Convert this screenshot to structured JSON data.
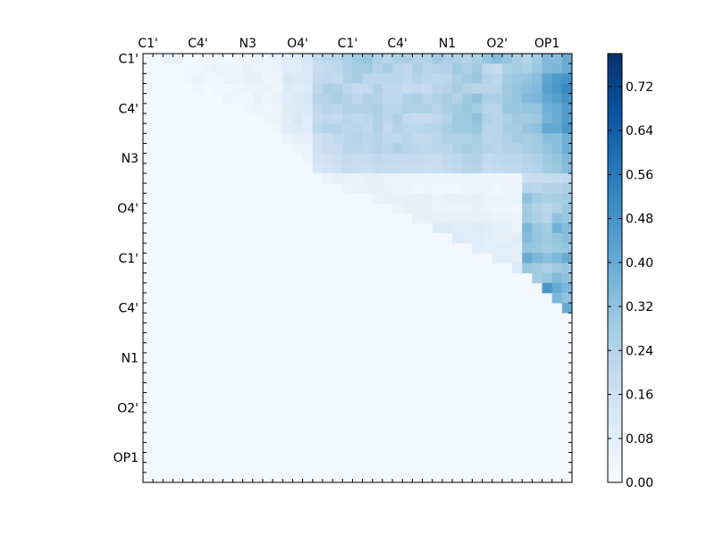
{
  "chart_data": {
    "type": "heatmap",
    "colormap": "Blues",
    "grid": false,
    "x_tick_labels": [
      "C1'",
      "C4'",
      "N3",
      "O4'",
      "C1'",
      "C4'",
      "N1",
      "O2'",
      "OP1"
    ],
    "y_tick_labels": [
      "C1'",
      "C4'",
      "N3",
      "O4'",
      "C1'",
      "C4'",
      "N1",
      "O2'",
      "OP1"
    ],
    "colorbar": {
      "range": [
        0.0,
        0.78
      ],
      "ticks": [
        "0.00",
        "0.08",
        "0.16",
        "0.24",
        "0.32",
        "0.40",
        "0.48",
        "0.56",
        "0.64",
        "0.72"
      ],
      "position": "right"
    },
    "n_cells": 43,
    "values": [
      [
        0.02,
        0.02,
        0.06,
        0.06,
        0.02,
        0.02,
        0.03,
        0.03,
        0.02,
        0.03,
        0.03,
        0.05,
        0.05,
        0.06,
        0.09,
        0.09,
        0.12,
        0.2,
        0.22,
        0.23,
        0.26,
        0.29,
        0.31,
        0.26,
        0.23,
        0.26,
        0.26,
        0.24,
        0.24,
        0.29,
        0.26,
        0.25,
        0.24,
        0.26,
        0.31,
        0.34,
        0.31,
        0.26,
        0.24,
        0.28,
        0.35,
        0.34,
        0.4
      ],
      [
        0.02,
        0.02,
        0.02,
        0.02,
        0.03,
        0.03,
        0.04,
        0.05,
        0.04,
        0.05,
        0.07,
        0.05,
        0.04,
        0.06,
        0.09,
        0.09,
        0.11,
        0.19,
        0.2,
        0.21,
        0.26,
        0.28,
        0.28,
        0.24,
        0.27,
        0.22,
        0.21,
        0.26,
        0.22,
        0.24,
        0.24,
        0.29,
        0.26,
        0.29,
        0.22,
        0.19,
        0.26,
        0.28,
        0.26,
        0.3,
        0.35,
        0.36,
        0.4
      ],
      [
        0.02,
        0.02,
        0.02,
        0.02,
        0.03,
        0.05,
        0.03,
        0.03,
        0.05,
        0.05,
        0.06,
        0.07,
        0.04,
        0.05,
        0.12,
        0.1,
        0.11,
        0.2,
        0.21,
        0.2,
        0.25,
        0.27,
        0.22,
        0.21,
        0.22,
        0.22,
        0.21,
        0.24,
        0.22,
        0.21,
        0.22,
        0.26,
        0.28,
        0.3,
        0.24,
        0.22,
        0.28,
        0.3,
        0.31,
        0.33,
        0.42,
        0.46,
        0.48
      ],
      [
        0.02,
        0.02,
        0.02,
        0.02,
        0.02,
        0.04,
        0.02,
        0.03,
        0.02,
        0.04,
        0.05,
        0.05,
        0.05,
        0.04,
        0.1,
        0.09,
        0.1,
        0.21,
        0.26,
        0.25,
        0.21,
        0.19,
        0.2,
        0.25,
        0.21,
        0.21,
        0.19,
        0.2,
        0.19,
        0.23,
        0.24,
        0.27,
        0.24,
        0.22,
        0.23,
        0.23,
        0.29,
        0.31,
        0.33,
        0.35,
        0.44,
        0.47,
        0.51
      ],
      [
        0.02,
        0.02,
        0.02,
        0.02,
        0.02,
        0.02,
        0.02,
        0.02,
        0.04,
        0.03,
        0.03,
        0.06,
        0.04,
        0.06,
        0.09,
        0.11,
        0.12,
        0.24,
        0.24,
        0.26,
        0.24,
        0.21,
        0.25,
        0.24,
        0.21,
        0.21,
        0.25,
        0.26,
        0.23,
        0.25,
        0.27,
        0.24,
        0.29,
        0.32,
        0.26,
        0.26,
        0.29,
        0.31,
        0.35,
        0.36,
        0.41,
        0.44,
        0.48
      ],
      [
        0.02,
        0.02,
        0.02,
        0.02,
        0.02,
        0.02,
        0.02,
        0.02,
        0.02,
        0.02,
        0.03,
        0.04,
        0.03,
        0.05,
        0.1,
        0.1,
        0.11,
        0.21,
        0.23,
        0.22,
        0.25,
        0.24,
        0.24,
        0.26,
        0.23,
        0.23,
        0.25,
        0.25,
        0.26,
        0.23,
        0.26,
        0.28,
        0.3,
        0.28,
        0.23,
        0.23,
        0.3,
        0.3,
        0.31,
        0.31,
        0.38,
        0.4,
        0.45
      ],
      [
        0.02,
        0.02,
        0.02,
        0.02,
        0.02,
        0.02,
        0.02,
        0.02,
        0.02,
        0.02,
        0.02,
        0.02,
        0.04,
        0.05,
        0.08,
        0.11,
        0.09,
        0.2,
        0.21,
        0.2,
        0.23,
        0.21,
        0.22,
        0.25,
        0.22,
        0.25,
        0.2,
        0.19,
        0.19,
        0.21,
        0.24,
        0.29,
        0.29,
        0.32,
        0.25,
        0.23,
        0.26,
        0.29,
        0.28,
        0.29,
        0.37,
        0.4,
        0.45
      ],
      [
        0.02,
        0.02,
        0.02,
        0.02,
        0.02,
        0.02,
        0.02,
        0.02,
        0.02,
        0.02,
        0.02,
        0.02,
        0.02,
        0.04,
        0.09,
        0.1,
        0.09,
        0.22,
        0.24,
        0.24,
        0.22,
        0.23,
        0.21,
        0.25,
        0.2,
        0.24,
        0.22,
        0.22,
        0.23,
        0.23,
        0.26,
        0.29,
        0.29,
        0.3,
        0.23,
        0.23,
        0.27,
        0.28,
        0.31,
        0.32,
        0.41,
        0.41,
        0.47
      ],
      [
        0.02,
        0.02,
        0.02,
        0.02,
        0.02,
        0.02,
        0.02,
        0.02,
        0.02,
        0.02,
        0.02,
        0.02,
        0.02,
        0.02,
        0.05,
        0.08,
        0.07,
        0.16,
        0.18,
        0.21,
        0.22,
        0.24,
        0.22,
        0.24,
        0.21,
        0.21,
        0.23,
        0.2,
        0.2,
        0.22,
        0.25,
        0.25,
        0.25,
        0.27,
        0.22,
        0.23,
        0.25,
        0.28,
        0.27,
        0.29,
        0.33,
        0.33,
        0.38
      ],
      [
        0.02,
        0.02,
        0.02,
        0.02,
        0.02,
        0.02,
        0.02,
        0.02,
        0.02,
        0.02,
        0.02,
        0.02,
        0.02,
        0.02,
        0.02,
        0.04,
        0.05,
        0.16,
        0.18,
        0.19,
        0.22,
        0.22,
        0.21,
        0.24,
        0.22,
        0.25,
        0.23,
        0.22,
        0.21,
        0.22,
        0.22,
        0.25,
        0.27,
        0.26,
        0.24,
        0.23,
        0.24,
        0.24,
        0.27,
        0.28,
        0.31,
        0.33,
        0.39
      ],
      [
        0.02,
        0.02,
        0.02,
        0.02,
        0.02,
        0.02,
        0.02,
        0.02,
        0.02,
        0.02,
        0.02,
        0.02,
        0.02,
        0.02,
        0.02,
        0.02,
        0.04,
        0.14,
        0.15,
        0.17,
        0.2,
        0.19,
        0.19,
        0.21,
        0.2,
        0.2,
        0.2,
        0.2,
        0.19,
        0.19,
        0.21,
        0.22,
        0.24,
        0.25,
        0.2,
        0.21,
        0.22,
        0.22,
        0.24,
        0.25,
        0.29,
        0.31,
        0.35
      ],
      [
        0.02,
        0.02,
        0.02,
        0.02,
        0.02,
        0.02,
        0.02,
        0.02,
        0.02,
        0.02,
        0.02,
        0.02,
        0.02,
        0.02,
        0.02,
        0.02,
        0.02,
        0.12,
        0.14,
        0.16,
        0.19,
        0.18,
        0.17,
        0.2,
        0.19,
        0.19,
        0.18,
        0.18,
        0.17,
        0.18,
        0.2,
        0.21,
        0.23,
        0.24,
        0.19,
        0.2,
        0.21,
        0.21,
        0.23,
        0.24,
        0.28,
        0.3,
        0.34
      ],
      [
        0.02,
        0.02,
        0.02,
        0.02,
        0.02,
        0.02,
        0.02,
        0.02,
        0.02,
        0.02,
        0.02,
        0.02,
        0.02,
        0.02,
        0.02,
        0.02,
        0.02,
        0.02,
        0.05,
        0.07,
        0.06,
        0.05,
        0.06,
        0.07,
        0.05,
        0.05,
        0.05,
        0.05,
        0.04,
        0.04,
        0.04,
        0.04,
        0.04,
        0.05,
        0.04,
        0.04,
        0.04,
        0.04,
        0.18,
        0.19,
        0.19,
        0.2,
        0.21
      ],
      [
        0.02,
        0.02,
        0.02,
        0.02,
        0.02,
        0.02,
        0.02,
        0.02,
        0.02,
        0.02,
        0.02,
        0.02,
        0.02,
        0.02,
        0.02,
        0.02,
        0.02,
        0.02,
        0.02,
        0.02,
        0.05,
        0.06,
        0.06,
        0.07,
        0.06,
        0.04,
        0.04,
        0.03,
        0.04,
        0.03,
        0.03,
        0.03,
        0.04,
        0.04,
        0.04,
        0.03,
        0.04,
        0.04,
        0.23,
        0.22,
        0.24,
        0.24,
        0.25
      ],
      [
        0.02,
        0.02,
        0.02,
        0.02,
        0.02,
        0.02,
        0.02,
        0.02,
        0.02,
        0.02,
        0.02,
        0.02,
        0.02,
        0.02,
        0.02,
        0.02,
        0.02,
        0.02,
        0.02,
        0.02,
        0.02,
        0.02,
        0.03,
        0.05,
        0.07,
        0.06,
        0.06,
        0.07,
        0.07,
        0.05,
        0.06,
        0.06,
        0.06,
        0.07,
        0.05,
        0.05,
        0.04,
        0.05,
        0.32,
        0.28,
        0.26,
        0.27,
        0.28
      ],
      [
        0.02,
        0.02,
        0.02,
        0.02,
        0.02,
        0.02,
        0.02,
        0.02,
        0.02,
        0.02,
        0.02,
        0.02,
        0.02,
        0.02,
        0.02,
        0.02,
        0.02,
        0.02,
        0.02,
        0.02,
        0.02,
        0.02,
        0.02,
        0.02,
        0.02,
        0.05,
        0.07,
        0.06,
        0.06,
        0.05,
        0.05,
        0.05,
        0.05,
        0.06,
        0.05,
        0.04,
        0.04,
        0.03,
        0.28,
        0.24,
        0.22,
        0.24,
        0.3
      ],
      [
        0.02,
        0.02,
        0.02,
        0.02,
        0.02,
        0.02,
        0.02,
        0.02,
        0.02,
        0.02,
        0.02,
        0.02,
        0.02,
        0.02,
        0.02,
        0.02,
        0.02,
        0.02,
        0.02,
        0.02,
        0.02,
        0.02,
        0.02,
        0.02,
        0.02,
        0.02,
        0.02,
        0.06,
        0.07,
        0.07,
        0.07,
        0.06,
        0.06,
        0.07,
        0.06,
        0.05,
        0.05,
        0.04,
        0.29,
        0.26,
        0.23,
        0.32,
        0.3
      ],
      [
        0.02,
        0.02,
        0.02,
        0.02,
        0.02,
        0.02,
        0.02,
        0.02,
        0.02,
        0.02,
        0.02,
        0.02,
        0.02,
        0.02,
        0.02,
        0.02,
        0.02,
        0.02,
        0.02,
        0.02,
        0.02,
        0.02,
        0.02,
        0.02,
        0.02,
        0.02,
        0.02,
        0.02,
        0.02,
        0.1,
        0.1,
        0.09,
        0.09,
        0.1,
        0.09,
        0.08,
        0.08,
        0.05,
        0.36,
        0.3,
        0.28,
        0.38,
        0.34
      ],
      [
        0.02,
        0.02,
        0.02,
        0.02,
        0.02,
        0.02,
        0.02,
        0.02,
        0.02,
        0.02,
        0.02,
        0.02,
        0.02,
        0.02,
        0.02,
        0.02,
        0.02,
        0.02,
        0.02,
        0.02,
        0.02,
        0.02,
        0.02,
        0.02,
        0.02,
        0.02,
        0.02,
        0.02,
        0.02,
        0.02,
        0.02,
        0.1,
        0.09,
        0.09,
        0.08,
        0.07,
        0.07,
        0.08,
        0.34,
        0.31,
        0.29,
        0.31,
        0.33
      ],
      [
        0.02,
        0.02,
        0.02,
        0.02,
        0.02,
        0.02,
        0.02,
        0.02,
        0.02,
        0.02,
        0.02,
        0.02,
        0.02,
        0.02,
        0.02,
        0.02,
        0.02,
        0.02,
        0.02,
        0.02,
        0.02,
        0.02,
        0.02,
        0.02,
        0.02,
        0.02,
        0.02,
        0.02,
        0.02,
        0.02,
        0.02,
        0.02,
        0.02,
        0.09,
        0.08,
        0.08,
        0.08,
        0.07,
        0.31,
        0.3,
        0.28,
        0.3,
        0.31
      ],
      [
        0.02,
        0.02,
        0.02,
        0.02,
        0.02,
        0.02,
        0.02,
        0.02,
        0.02,
        0.02,
        0.02,
        0.02,
        0.02,
        0.02,
        0.02,
        0.02,
        0.02,
        0.02,
        0.02,
        0.02,
        0.02,
        0.02,
        0.02,
        0.02,
        0.02,
        0.02,
        0.02,
        0.02,
        0.02,
        0.02,
        0.02,
        0.02,
        0.02,
        0.02,
        0.02,
        0.08,
        0.08,
        0.07,
        0.4,
        0.36,
        0.33,
        0.36,
        0.4
      ],
      [
        0.02,
        0.02,
        0.02,
        0.02,
        0.02,
        0.02,
        0.02,
        0.02,
        0.02,
        0.02,
        0.02,
        0.02,
        0.02,
        0.02,
        0.02,
        0.02,
        0.02,
        0.02,
        0.02,
        0.02,
        0.02,
        0.02,
        0.02,
        0.02,
        0.02,
        0.02,
        0.02,
        0.02,
        0.02,
        0.02,
        0.02,
        0.02,
        0.02,
        0.02,
        0.02,
        0.02,
        0.02,
        0.1,
        0.3,
        0.28,
        0.26,
        0.29,
        0.3
      ],
      [
        0.02,
        0.02,
        0.02,
        0.02,
        0.02,
        0.02,
        0.02,
        0.02,
        0.02,
        0.02,
        0.02,
        0.02,
        0.02,
        0.02,
        0.02,
        0.02,
        0.02,
        0.02,
        0.02,
        0.02,
        0.02,
        0.02,
        0.02,
        0.02,
        0.02,
        0.02,
        0.02,
        0.02,
        0.02,
        0.02,
        0.02,
        0.02,
        0.02,
        0.02,
        0.02,
        0.02,
        0.02,
        0.02,
        0.02,
        0.28,
        0.3,
        0.35,
        0.32
      ],
      [
        0.02,
        0.02,
        0.02,
        0.02,
        0.02,
        0.02,
        0.02,
        0.02,
        0.02,
        0.02,
        0.02,
        0.02,
        0.02,
        0.02,
        0.02,
        0.02,
        0.02,
        0.02,
        0.02,
        0.02,
        0.02,
        0.02,
        0.02,
        0.02,
        0.02,
        0.02,
        0.02,
        0.02,
        0.02,
        0.02,
        0.02,
        0.02,
        0.02,
        0.02,
        0.02,
        0.02,
        0.02,
        0.02,
        0.02,
        0.02,
        0.47,
        0.4,
        0.36
      ],
      [
        0.02,
        0.02,
        0.02,
        0.02,
        0.02,
        0.02,
        0.02,
        0.02,
        0.02,
        0.02,
        0.02,
        0.02,
        0.02,
        0.02,
        0.02,
        0.02,
        0.02,
        0.02,
        0.02,
        0.02,
        0.02,
        0.02,
        0.02,
        0.02,
        0.02,
        0.02,
        0.02,
        0.02,
        0.02,
        0.02,
        0.02,
        0.02,
        0.02,
        0.02,
        0.02,
        0.02,
        0.02,
        0.02,
        0.02,
        0.02,
        0.02,
        0.36,
        0.32
      ],
      [
        0.02,
        0.02,
        0.02,
        0.02,
        0.02,
        0.02,
        0.02,
        0.02,
        0.02,
        0.02,
        0.02,
        0.02,
        0.02,
        0.02,
        0.02,
        0.02,
        0.02,
        0.02,
        0.02,
        0.02,
        0.02,
        0.02,
        0.02,
        0.02,
        0.02,
        0.02,
        0.02,
        0.02,
        0.02,
        0.02,
        0.02,
        0.02,
        0.02,
        0.02,
        0.02,
        0.02,
        0.02,
        0.02,
        0.02,
        0.02,
        0.02,
        0.02,
        0.4
      ],
      [
        0.02,
        0.02,
        0.02,
        0.02,
        0.02,
        0.02,
        0.02,
        0.02,
        0.02,
        0.02,
        0.02,
        0.02,
        0.02,
        0.02,
        0.02,
        0.02,
        0.02,
        0.02,
        0.02,
        0.02,
        0.02,
        0.02,
        0.02,
        0.02,
        0.02,
        0.02,
        0.02,
        0.02,
        0.02,
        0.02,
        0.02,
        0.02,
        0.02,
        0.02,
        0.02,
        0.02,
        0.02,
        0.02,
        0.02,
        0.02,
        0.02,
        0.02,
        0.02
      ]
    ]
  }
}
